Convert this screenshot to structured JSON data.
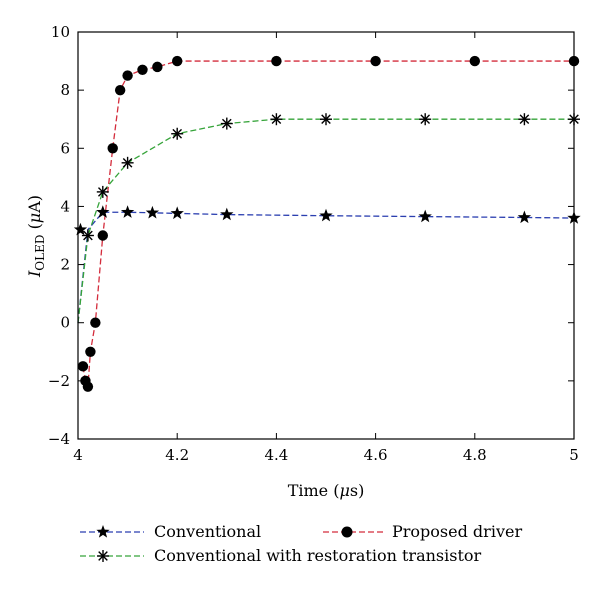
{
  "chart_data": {
    "type": "line",
    "xlabel_main": "Time (",
    "xlabel_mu": "μ",
    "xlabel_tail": "s)",
    "ylabel_main": "I",
    "ylabel_sub": "OLED",
    "ylabel_open": " (",
    "ylabel_mu": "μ",
    "ylabel_tail": "A)",
    "xlim": [
      4,
      5
    ],
    "ylim": [
      -4,
      10
    ],
    "xticks": [
      4,
      4.2,
      4.4,
      4.6,
      4.8,
      5
    ],
    "xtick_labels": [
      "4",
      "4.2",
      "4.4",
      "4.6",
      "4.8",
      "5"
    ],
    "yticks": [
      -4,
      -2,
      0,
      2,
      4,
      6,
      8,
      10
    ],
    "ytick_labels": [
      "−4",
      "−2",
      "0",
      "2",
      "4",
      "6",
      "8",
      "10"
    ],
    "grid": false,
    "legend_position": "bottom",
    "series": [
      {
        "name": "Conventional",
        "color": "#2b3fb0",
        "marker": "star",
        "x": [
          4.0,
          4.02,
          4.05,
          4.1,
          4.15,
          4.2,
          4.3,
          4.5,
          4.7,
          4.9,
          5.0
        ],
        "y": [
          0,
          3.2,
          3.8,
          3.8,
          3.78,
          3.76,
          3.72,
          3.68,
          3.65,
          3.62,
          3.6
        ],
        "markers_x": [
          4.005,
          4.05,
          4.1,
          4.15,
          4.2,
          4.3,
          4.5,
          4.7,
          4.9,
          5.0
        ],
        "markers_y": [
          3.2,
          3.8,
          3.8,
          3.78,
          3.76,
          3.72,
          3.68,
          3.65,
          3.62,
          3.6
        ]
      },
      {
        "name": "Proposed driver",
        "color": "#d42c3c",
        "marker": "circle",
        "x": [
          4.01,
          4.015,
          4.02,
          4.025,
          4.035,
          4.05,
          4.07,
          4.085,
          4.1,
          4.13,
          4.16,
          4.2,
          4.4,
          4.6,
          4.8,
          5.0
        ],
        "y": [
          -1.5,
          -2.0,
          -2.2,
          -1.0,
          0,
          3.0,
          6.0,
          8.0,
          8.5,
          8.7,
          8.8,
          9.0,
          9.0,
          9.0,
          9.0,
          9.0
        ]
      },
      {
        "name": "Conventional with restoration transistor",
        "color": "#36a43a",
        "marker": "asterisk",
        "x": [
          4.0,
          4.02,
          4.05,
          4.1,
          4.2,
          4.3,
          4.4,
          4.5,
          4.7,
          4.9,
          5.0
        ],
        "y": [
          0,
          3.0,
          4.5,
          5.5,
          6.5,
          6.85,
          7.0,
          7.0,
          7.0,
          7.0,
          7.0
        ],
        "markers_x": [
          4.02,
          4.05,
          4.1,
          4.2,
          4.3,
          4.4,
          4.5,
          4.7,
          4.9,
          5.0
        ],
        "markers_y": [
          3.0,
          4.5,
          5.5,
          6.5,
          6.85,
          7.0,
          7.0,
          7.0,
          7.0,
          7.0
        ]
      }
    ]
  }
}
